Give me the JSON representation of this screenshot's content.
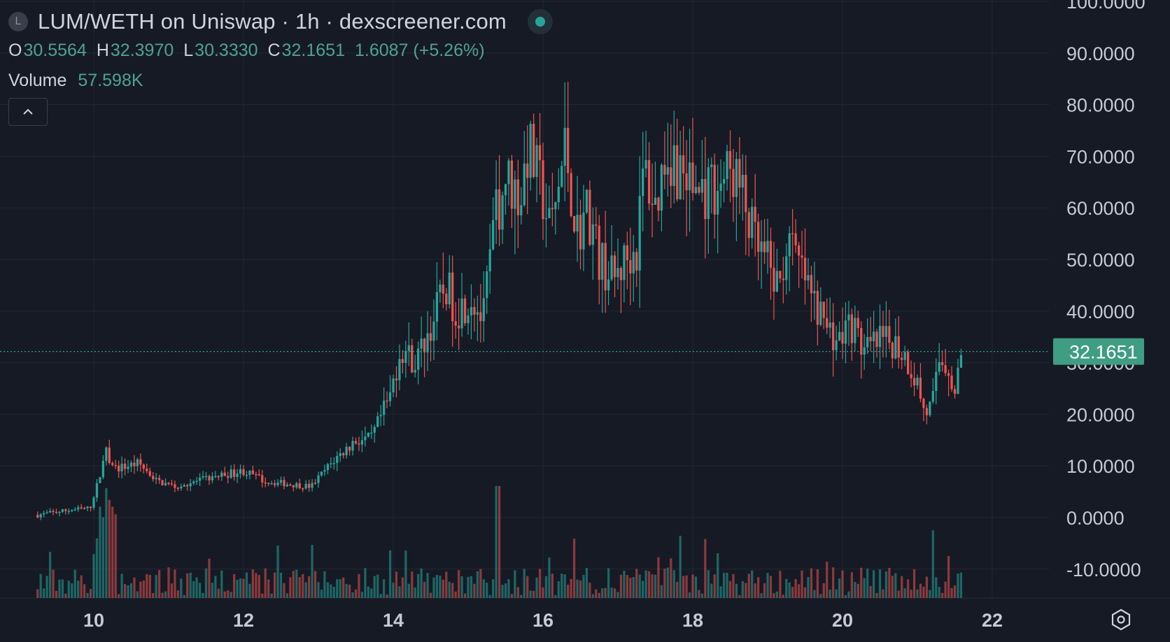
{
  "header": {
    "badge_letter": "L",
    "title": "LUM/WETH on Uniswap · 1h · dexscreener.com",
    "ohlc": [
      {
        "key": "O",
        "value": "30.5564"
      },
      {
        "key": "H",
        "value": "32.3970"
      },
      {
        "key": "L",
        "value": "30.3330"
      },
      {
        "key": "C",
        "value": "32.1651"
      }
    ],
    "change": "1.6087 (+5.26%)",
    "volume_label": "Volume",
    "volume_value": "57.598K",
    "collapse_icon": "chevron-up-icon"
  },
  "colors": {
    "background": "#161a25",
    "grid": "#232734",
    "up": "#26a69a",
    "down": "#ef5350",
    "text": "#d1d4dc",
    "price_label_bg": "#3f9d82"
  },
  "chart_data": {
    "type": "candlestick",
    "current_price_label": "32.1651",
    "y_ticks": [
      "100.0000",
      "90.0000",
      "80.0000",
      "70.0000",
      "60.0000",
      "50.0000",
      "40.0000",
      "30.0000",
      "20.0000",
      "10.0000",
      "0.0000",
      "-10.0000"
    ],
    "x_ticks": [
      "10",
      "12",
      "14",
      "16",
      "18",
      "20",
      "22"
    ],
    "ylim": [
      -10,
      100
    ],
    "xlim": [
      9.2,
      22.8
    ],
    "price_path": [
      [
        9.25,
        0.5
      ],
      [
        9.7,
        1.5
      ],
      [
        9.95,
        1.8
      ],
      [
        10.1,
        9
      ],
      [
        10.15,
        13
      ],
      [
        10.3,
        9.5
      ],
      [
        10.6,
        10.5
      ],
      [
        10.85,
        7
      ],
      [
        11.1,
        6
      ],
      [
        11.5,
        7.5
      ],
      [
        11.8,
        8.5
      ],
      [
        12.0,
        9
      ],
      [
        12.3,
        7
      ],
      [
        12.6,
        6.5
      ],
      [
        12.9,
        6
      ],
      [
        13.2,
        11
      ],
      [
        13.5,
        15
      ],
      [
        13.7,
        15
      ],
      [
        13.85,
        20
      ],
      [
        13.95,
        23
      ],
      [
        14.1,
        33
      ],
      [
        14.3,
        30
      ],
      [
        14.5,
        37
      ],
      [
        14.7,
        45
      ],
      [
        14.85,
        40
      ],
      [
        15.05,
        43
      ],
      [
        15.2,
        38
      ],
      [
        15.35,
        57
      ],
      [
        15.5,
        66
      ],
      [
        15.7,
        62
      ],
      [
        15.8,
        72
      ],
      [
        16.0,
        62
      ],
      [
        16.1,
        55
      ],
      [
        16.3,
        72
      ],
      [
        16.45,
        55
      ],
      [
        16.6,
        60
      ],
      [
        16.75,
        50
      ],
      [
        16.95,
        46
      ],
      [
        17.1,
        50
      ],
      [
        17.25,
        52
      ],
      [
        17.35,
        68
      ],
      [
        17.5,
        60
      ],
      [
        17.65,
        72
      ],
      [
        17.8,
        68
      ],
      [
        18.0,
        64
      ],
      [
        18.15,
        63
      ],
      [
        18.35,
        65
      ],
      [
        18.55,
        67
      ],
      [
        18.7,
        60
      ],
      [
        18.85,
        52
      ],
      [
        19.0,
        49
      ],
      [
        19.15,
        44
      ],
      [
        19.25,
        53
      ],
      [
        19.45,
        48
      ],
      [
        19.6,
        42
      ],
      [
        19.75,
        38
      ],
      [
        19.95,
        34
      ],
      [
        20.1,
        38
      ],
      [
        20.3,
        32
      ],
      [
        20.5,
        34
      ],
      [
        20.7,
        34
      ],
      [
        20.85,
        31
      ],
      [
        21.0,
        26
      ],
      [
        21.1,
        20
      ],
      [
        21.2,
        22
      ],
      [
        21.3,
        31
      ],
      [
        21.42,
        29
      ],
      [
        21.5,
        24
      ],
      [
        21.6,
        32.17
      ]
    ],
    "volume_max": "ranges up to roughly the 10.0000 gridline"
  }
}
